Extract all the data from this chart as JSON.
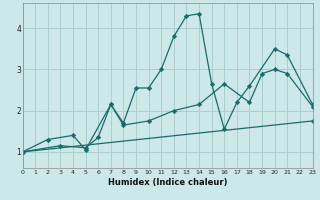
{
  "xlabel": "Humidex (Indice chaleur)",
  "bg_color": "#cce8e8",
  "grid_color": "#aacfcf",
  "line_color": "#1a6b6b",
  "marker_color": "#1a6b6b",
  "xlim": [
    0,
    23
  ],
  "ylim": [
    0.6,
    4.6
  ],
  "yticks": [
    1,
    2,
    3,
    4
  ],
  "xticks": [
    0,
    1,
    2,
    3,
    4,
    5,
    6,
    7,
    8,
    9,
    10,
    11,
    12,
    13,
    14,
    15,
    16,
    17,
    18,
    19,
    20,
    21,
    22,
    23
  ],
  "series": [
    {
      "x": [
        0,
        2,
        4,
        5,
        7,
        8,
        9,
        10,
        11,
        12,
        13,
        14,
        15,
        16,
        17,
        18,
        20,
        21,
        23
      ],
      "y": [
        1.0,
        1.3,
        1.4,
        1.05,
        2.15,
        1.7,
        2.55,
        2.55,
        3.0,
        3.8,
        4.3,
        4.35,
        2.65,
        1.55,
        2.2,
        2.6,
        3.5,
        3.35,
        2.15
      ]
    },
    {
      "x": [
        0,
        3,
        5,
        6,
        7,
        8,
        10,
        12,
        14,
        16,
        18,
        19,
        20,
        21,
        23
      ],
      "y": [
        1.0,
        1.15,
        1.1,
        1.35,
        2.15,
        1.65,
        1.75,
        2.0,
        2.15,
        2.65,
        2.2,
        2.9,
        3.0,
        2.9,
        2.1
      ]
    },
    {
      "x": [
        0,
        23
      ],
      "y": [
        1.0,
        1.75
      ]
    }
  ]
}
